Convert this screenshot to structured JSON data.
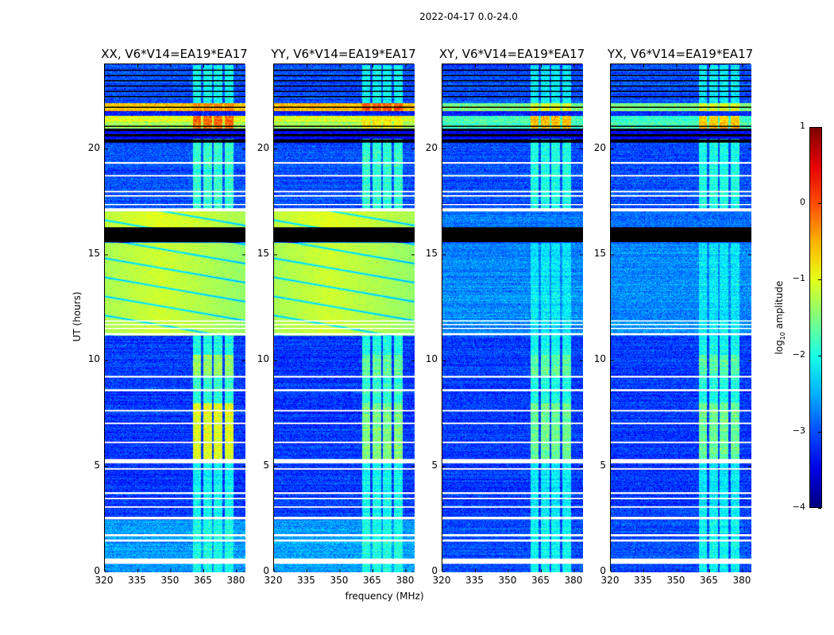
{
  "chart_data": {
    "type": "heatmap",
    "title": "2022-04-17 0.0-24.0",
    "xlabel": "frequency (MHz)",
    "ylabel": "UT (hours)",
    "xlim": [
      320,
      384
    ],
    "ylim": [
      0,
      24
    ],
    "xticks": [
      320,
      335,
      350,
      365,
      380
    ],
    "yticks": [
      0,
      5,
      10,
      15,
      20
    ],
    "colorbar": {
      "label_prefix": "log",
      "label_sub": "10",
      "label_suffix": " amplitude",
      "range": [
        -4,
        1
      ],
      "ticks": [
        1,
        0,
        -1,
        -2,
        -3,
        -4
      ],
      "colormap": "jet"
    },
    "rfi_channels": [
      [
        360,
        363.5
      ],
      [
        364.5,
        368.5
      ],
      [
        369.5,
        373.5
      ],
      [
        374.5,
        378.5
      ]
    ],
    "flagged_rows_hours": [
      [
        0.4,
        0.65
      ],
      [
        1.45,
        1.55
      ],
      [
        1.7,
        1.8
      ],
      [
        2.5,
        2.62
      ],
      [
        3.05,
        3.12
      ],
      [
        3.45,
        3.52
      ],
      [
        3.7,
        3.78
      ],
      [
        4.85,
        4.92
      ],
      [
        5.15,
        5.35
      ],
      [
        6.1,
        6.17
      ],
      [
        7.0,
        7.07
      ],
      [
        7.6,
        7.67
      ],
      [
        8.55,
        8.65
      ],
      [
        9.2,
        9.28
      ],
      [
        11.2,
        11.3
      ],
      [
        11.5,
        11.55
      ],
      [
        11.68,
        11.73
      ],
      [
        11.85,
        11.9
      ],
      [
        17.05,
        17.2
      ],
      [
        17.35,
        17.4
      ],
      [
        17.75,
        17.82
      ],
      [
        17.95,
        18.02
      ],
      [
        18.7,
        18.77
      ],
      [
        19.3,
        19.38
      ]
    ],
    "missing_rows_hours": [
      [
        15.6,
        16.3
      ],
      [
        20.3,
        20.45
      ],
      [
        20.6,
        20.7
      ],
      [
        20.85,
        20.95
      ],
      [
        21.05,
        21.1
      ],
      [
        22.45,
        22.5
      ],
      [
        22.7,
        22.75
      ],
      [
        22.95,
        23.0
      ],
      [
        23.2,
        23.25
      ],
      [
        23.45,
        23.5
      ],
      [
        23.7,
        23.75
      ],
      [
        21.95,
        22.0
      ]
    ],
    "panels": [
      {
        "title": "XX, V6*V14=EA19*EA17",
        "arcs": true,
        "bands": [
          [
            0,
            2.5,
            -2.6
          ],
          [
            2.5,
            11.2,
            -3.1
          ],
          [
            11.2,
            15.6,
            -1.4
          ],
          [
            16.3,
            17.1,
            -1.3
          ],
          [
            17.1,
            20.3,
            -3.0
          ],
          [
            20.3,
            21.0,
            -3.4
          ],
          [
            21.0,
            21.3,
            -1.3
          ],
          [
            21.3,
            21.6,
            -1.0
          ],
          [
            21.6,
            21.8,
            -3.2
          ],
          [
            21.8,
            22.2,
            -0.6
          ],
          [
            22.2,
            24,
            -3.0
          ]
        ],
        "rfi": [
          [
            0,
            2.5,
            -2.0
          ],
          [
            2.5,
            5.3,
            -2.1
          ],
          [
            5.3,
            8.0,
            -1.0
          ],
          [
            8.0,
            9.3,
            -1.9
          ],
          [
            9.3,
            10.3,
            -1.4
          ],
          [
            10.3,
            11.2,
            -2.0
          ],
          [
            17.1,
            20.5,
            -1.9
          ],
          [
            21.0,
            21.6,
            -0.2
          ],
          [
            21.8,
            22.2,
            -0.3
          ],
          [
            22.2,
            24,
            -2.1
          ]
        ]
      },
      {
        "title": "YY, V6*V14=EA19*EA17",
        "arcs": true,
        "bands": [
          [
            0,
            2.5,
            -2.6
          ],
          [
            2.5,
            11.2,
            -3.1
          ],
          [
            11.2,
            15.6,
            -1.4
          ],
          [
            16.3,
            17.1,
            -1.3
          ],
          [
            17.1,
            20.3,
            -3.0
          ],
          [
            20.3,
            21.0,
            -3.4
          ],
          [
            21.0,
            21.3,
            -1.3
          ],
          [
            21.3,
            21.6,
            -1.0
          ],
          [
            21.6,
            21.8,
            -3.2
          ],
          [
            21.8,
            22.2,
            -0.6
          ],
          [
            22.2,
            24,
            -3.0
          ]
        ],
        "rfi": [
          [
            0,
            2.5,
            -2.0
          ],
          [
            2.5,
            5.3,
            -2.1
          ],
          [
            5.3,
            8.0,
            -1.5
          ],
          [
            8.0,
            9.3,
            -1.9
          ],
          [
            9.3,
            10.3,
            -1.6
          ],
          [
            10.3,
            11.2,
            -2.0
          ],
          [
            17.1,
            20.5,
            -1.9
          ],
          [
            21.0,
            21.6,
            -0.8
          ],
          [
            21.8,
            22.2,
            -0.1
          ],
          [
            22.2,
            24,
            -2.1
          ]
        ]
      },
      {
        "title": "XY, V6*V14=EA19*EA17",
        "arcs": false,
        "bands": [
          [
            0,
            2.5,
            -3.0
          ],
          [
            2.5,
            11.2,
            -3.1
          ],
          [
            11.2,
            15.6,
            -2.7
          ],
          [
            16.3,
            17.1,
            -2.8
          ],
          [
            17.1,
            20.3,
            -3.0
          ],
          [
            20.3,
            21.0,
            -3.4
          ],
          [
            21.0,
            21.6,
            -1.8
          ],
          [
            21.6,
            21.8,
            -3.2
          ],
          [
            21.8,
            22.2,
            -1.5
          ],
          [
            22.2,
            24,
            -3.0
          ]
        ],
        "rfi": [
          [
            0,
            2.5,
            -2.1
          ],
          [
            2.5,
            5.3,
            -2.2
          ],
          [
            5.3,
            8.0,
            -1.6
          ],
          [
            8.0,
            9.3,
            -2.0
          ],
          [
            9.3,
            10.3,
            -1.7
          ],
          [
            10.3,
            11.2,
            -2.1
          ],
          [
            11.2,
            15.6,
            -2.2
          ],
          [
            17.1,
            20.5,
            -2.0
          ],
          [
            21.0,
            21.6,
            -0.6
          ],
          [
            21.8,
            22.2,
            -1.0
          ],
          [
            22.2,
            24,
            -2.2
          ]
        ]
      },
      {
        "title": "YX, V6*V14=EA19*EA17",
        "arcs": false,
        "bands": [
          [
            0,
            2.5,
            -3.0
          ],
          [
            2.5,
            11.2,
            -3.1
          ],
          [
            11.2,
            15.6,
            -2.7
          ],
          [
            16.3,
            17.1,
            -2.8
          ],
          [
            17.1,
            20.3,
            -3.0
          ],
          [
            20.3,
            21.0,
            -3.4
          ],
          [
            21.0,
            21.6,
            -1.8
          ],
          [
            21.6,
            21.8,
            -3.2
          ],
          [
            21.8,
            22.2,
            -1.5
          ],
          [
            22.2,
            24,
            -3.0
          ]
        ],
        "rfi": [
          [
            0,
            2.5,
            -2.1
          ],
          [
            2.5,
            5.3,
            -2.2
          ],
          [
            5.3,
            8.0,
            -1.6
          ],
          [
            8.0,
            9.3,
            -2.0
          ],
          [
            9.3,
            10.3,
            -1.7
          ],
          [
            10.3,
            11.2,
            -2.1
          ],
          [
            11.2,
            15.6,
            -2.2
          ],
          [
            17.1,
            20.5,
            -2.0
          ],
          [
            21.0,
            21.6,
            -0.6
          ],
          [
            21.8,
            22.2,
            -1.0
          ],
          [
            22.2,
            24,
            -2.2
          ]
        ]
      }
    ]
  }
}
